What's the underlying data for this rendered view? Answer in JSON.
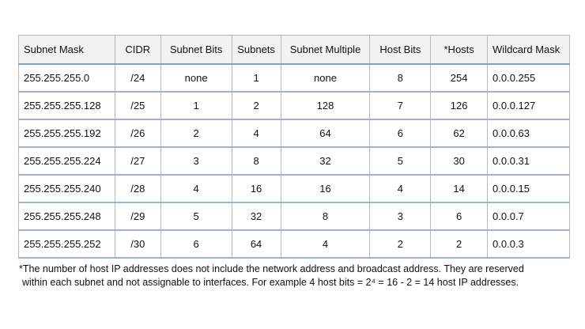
{
  "table": {
    "header": [
      "Subnet Mask",
      "CIDR",
      "Subnet Bits",
      "Subnets",
      "Subnet Multiple",
      "Host Bits",
      "*Hosts",
      "Wildcard Mask"
    ],
    "rows": [
      [
        "255.255.255.0",
        "/24",
        "none",
        "1",
        "none",
        "8",
        "254",
        "0.0.0.255"
      ],
      [
        "255.255.255.128",
        "/25",
        "1",
        "2",
        "128",
        "7",
        "126",
        "0.0.0.127"
      ],
      [
        "255.255.255.192",
        "/26",
        "2",
        "4",
        "64",
        "6",
        "62",
        "0.0.0.63"
      ],
      [
        "255.255.255.224",
        "/27",
        "3",
        "8",
        "32",
        "5",
        "30",
        "0.0.0.31"
      ],
      [
        "255.255.255.240",
        "/28",
        "4",
        "16",
        "16",
        "4",
        "14",
        "0.0.0.15"
      ],
      [
        "255.255.255.248",
        "/29",
        "5",
        "32",
        "8",
        "3",
        "6",
        "0.0.0.7"
      ],
      [
        "255.255.255.252",
        "/30",
        "6",
        "64",
        "4",
        "2",
        "2",
        "0.0.0.3"
      ]
    ]
  },
  "footnote": [
    "*The number of host IP addresses does not include the network address and broadcast address. They are reserved",
    "within each subnet and not assignable to interfaces. For example 4 host bits = 2⁴ = 16 - 2 = 14 host IP addresses."
  ]
}
